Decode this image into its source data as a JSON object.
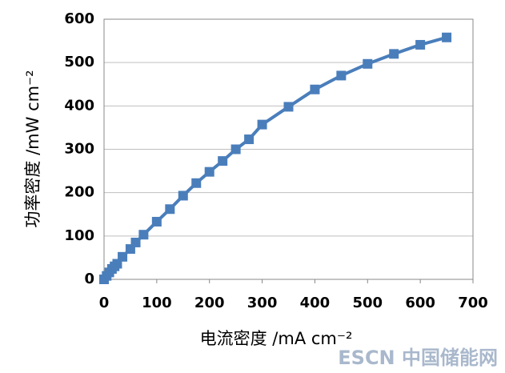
{
  "chart_data": {
    "type": "line",
    "xlabel": "电流密度 /mA cm⁻²",
    "ylabel": "功率密度 /mW cm⁻²",
    "watermark": "ESCN 中国储能网",
    "x": [
      0,
      5,
      10,
      15,
      20,
      25,
      35,
      50,
      60,
      75,
      100,
      125,
      150,
      175,
      200,
      225,
      250,
      275,
      300,
      350,
      400,
      450,
      500,
      550,
      600,
      650
    ],
    "series": [
      {
        "color": "#4a7ebb",
        "values": [
          0,
          8,
          16,
          24,
          30,
          36,
          52,
          70,
          85,
          103,
          133,
          162,
          193,
          222,
          248,
          273,
          300,
          323,
          357,
          398,
          438,
          470,
          497,
          520,
          541,
          558
        ]
      }
    ],
    "xlim": [
      0,
      700
    ],
    "xticks": [
      0,
      100,
      200,
      300,
      400,
      500,
      600,
      700
    ],
    "ylim": [
      0,
      600
    ],
    "yticks": [
      0,
      100,
      200,
      300,
      400,
      500,
      600
    ],
    "grid": true
  }
}
